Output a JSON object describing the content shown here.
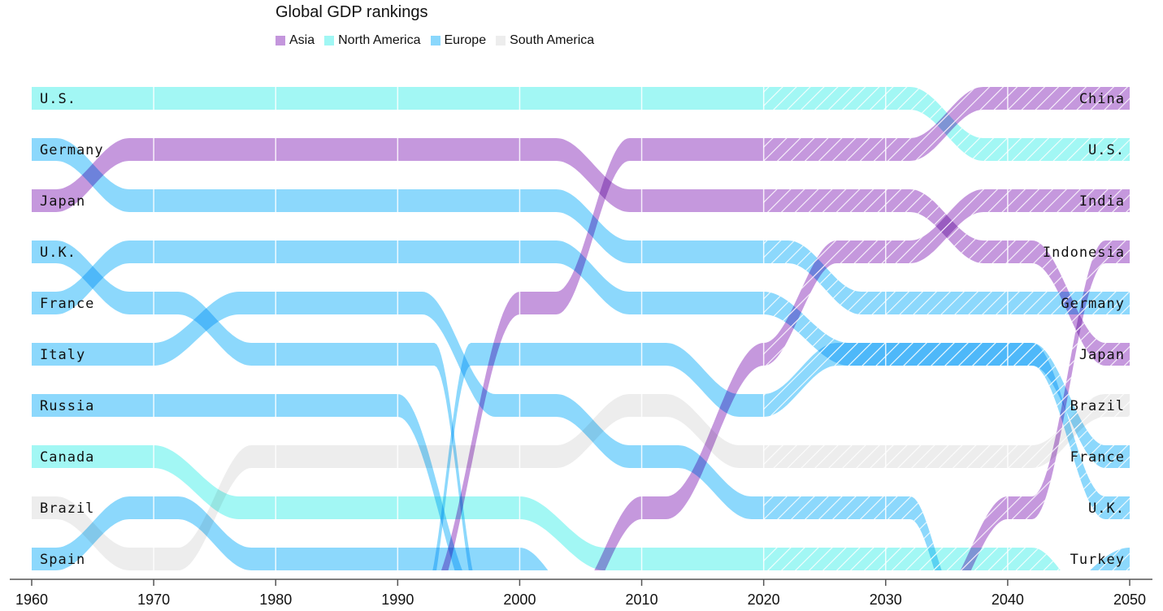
{
  "chart_data": {
    "type": "bump",
    "title": "Global GDP rankings",
    "xlabel": "",
    "ylabel": "",
    "xlim": [
      1960,
      2050
    ],
    "xticks": [
      1960,
      1970,
      1980,
      1990,
      2000,
      2010,
      2020,
      2030,
      2040,
      2050
    ],
    "ranks_shown": 10,
    "projection_start": 2020,
    "legend_position": "top-left",
    "legend": [
      {
        "name": "Asia",
        "color": "#C496DC"
      },
      {
        "name": "North America",
        "color": "#A0F7F4"
      },
      {
        "name": "Europe",
        "color": "#8AD7FC"
      },
      {
        "name": "South America",
        "color": "#EDEDED"
      }
    ],
    "left_labels": [
      "U.S.",
      "Germany",
      "Japan",
      "U.K.",
      "France",
      "Italy",
      "Russia",
      "Canada",
      "Brazil",
      "Spain"
    ],
    "right_labels": [
      "China",
      "U.S.",
      "India",
      "Indonesia",
      "Germany",
      "Japan",
      "Brazil",
      "France",
      "U.K.",
      "Turkey"
    ],
    "series": [
      {
        "name": "U.S.",
        "region": "North America",
        "path": [
          [
            1960,
            1
          ],
          [
            2032,
            1
          ],
          [
            2038,
            2
          ],
          [
            2050,
            2
          ]
        ]
      },
      {
        "name": "Germany",
        "region": "Europe",
        "path": [
          [
            1960,
            2
          ],
          [
            1962,
            2
          ],
          [
            1968,
            3
          ],
          [
            2003,
            3
          ],
          [
            2009,
            4
          ],
          [
            2022,
            4
          ],
          [
            2028,
            5
          ],
          [
            2050,
            5
          ]
        ]
      },
      {
        "name": "Japan",
        "region": "Asia",
        "path": [
          [
            1960,
            3
          ],
          [
            1962,
            3
          ],
          [
            1968,
            2
          ],
          [
            2003,
            2
          ],
          [
            2009,
            3
          ],
          [
            2032,
            3
          ],
          [
            2038,
            4
          ],
          [
            2042,
            4
          ],
          [
            2048,
            6
          ],
          [
            2050,
            6
          ]
        ]
      },
      {
        "name": "U.K.",
        "region": "Europe",
        "path": [
          [
            1960,
            4
          ],
          [
            1962,
            4
          ],
          [
            1968,
            5
          ],
          [
            1972,
            5
          ],
          [
            1978,
            6
          ],
          [
            1993,
            6
          ],
          [
            1997,
            11
          ]
        ]
      },
      {
        "name": "France",
        "region": "Europe",
        "path": [
          [
            1960,
            5
          ],
          [
            1962,
            5
          ],
          [
            1968,
            4
          ],
          [
            2003,
            4
          ],
          [
            2009,
            5
          ],
          [
            2020,
            5
          ],
          [
            2027,
            6
          ],
          [
            2042,
            6
          ],
          [
            2048,
            8
          ],
          [
            2050,
            8
          ]
        ]
      },
      {
        "name": "Italy",
        "region": "Europe",
        "path": [
          [
            1960,
            6
          ],
          [
            1970,
            6
          ],
          [
            1977,
            5
          ],
          [
            1992,
            5
          ],
          [
            1998,
            7
          ],
          [
            2003,
            7
          ],
          [
            2009,
            8
          ],
          [
            2013,
            8
          ],
          [
            2019,
            9
          ],
          [
            2032,
            9
          ],
          [
            2036,
            11
          ]
        ]
      },
      {
        "name": "Russia",
        "region": "Europe",
        "path": [
          [
            1960,
            7
          ],
          [
            1990,
            7
          ],
          [
            1997,
            11
          ]
        ]
      },
      {
        "name": "Canada",
        "region": "North America",
        "path": [
          [
            1960,
            8
          ],
          [
            1970,
            8
          ],
          [
            1977,
            9
          ],
          [
            2000,
            9
          ],
          [
            2007,
            10
          ],
          [
            2042,
            10
          ],
          [
            2047,
            11
          ]
        ]
      },
      {
        "name": "Brazil",
        "region": "South America",
        "path": [
          [
            1960,
            9
          ],
          [
            1962,
            9
          ],
          [
            1968,
            10
          ],
          [
            1972,
            10
          ],
          [
            1978,
            8
          ],
          [
            2003,
            8
          ],
          [
            2009,
            7
          ],
          [
            2012,
            7
          ],
          [
            2018,
            8
          ],
          [
            2042,
            8
          ],
          [
            2048,
            7
          ],
          [
            2050,
            7
          ]
        ]
      },
      {
        "name": "Spain",
        "region": "Europe",
        "path": [
          [
            1960,
            10
          ],
          [
            1962,
            10
          ],
          [
            1968,
            9
          ],
          [
            1972,
            9
          ],
          [
            1978,
            10
          ],
          [
            2000,
            10
          ],
          [
            2005,
            11
          ]
        ]
      },
      {
        "name": "U.K. (2)",
        "region": "Europe",
        "path": [
          [
            1992,
            11
          ],
          [
            1996,
            6
          ],
          [
            2012,
            6
          ],
          [
            2018,
            7
          ],
          [
            2020,
            7
          ],
          [
            2026,
            6
          ],
          [
            2042,
            6
          ],
          [
            2048,
            9
          ],
          [
            2050,
            9
          ]
        ]
      },
      {
        "name": "China",
        "region": "Asia",
        "path": [
          [
            1992,
            11
          ],
          [
            2000,
            5
          ],
          [
            2003,
            5
          ],
          [
            2009,
            2
          ],
          [
            2032,
            2
          ],
          [
            2038,
            1
          ],
          [
            2050,
            1
          ]
        ]
      },
      {
        "name": "India",
        "region": "Asia",
        "path": [
          [
            2004,
            11
          ],
          [
            2010,
            9
          ],
          [
            2012,
            9
          ],
          [
            2020,
            6
          ],
          [
            2026,
            4
          ],
          [
            2032,
            4
          ],
          [
            2038,
            3
          ],
          [
            2050,
            3
          ]
        ]
      },
      {
        "name": "Indonesia",
        "region": "Asia",
        "path": [
          [
            2034,
            11
          ],
          [
            2040,
            9
          ],
          [
            2042,
            9
          ],
          [
            2048,
            4
          ],
          [
            2050,
            4
          ]
        ]
      },
      {
        "name": "Turkey",
        "region": "Europe",
        "path": [
          [
            2043,
            11
          ],
          [
            2050,
            10
          ]
        ]
      }
    ]
  }
}
